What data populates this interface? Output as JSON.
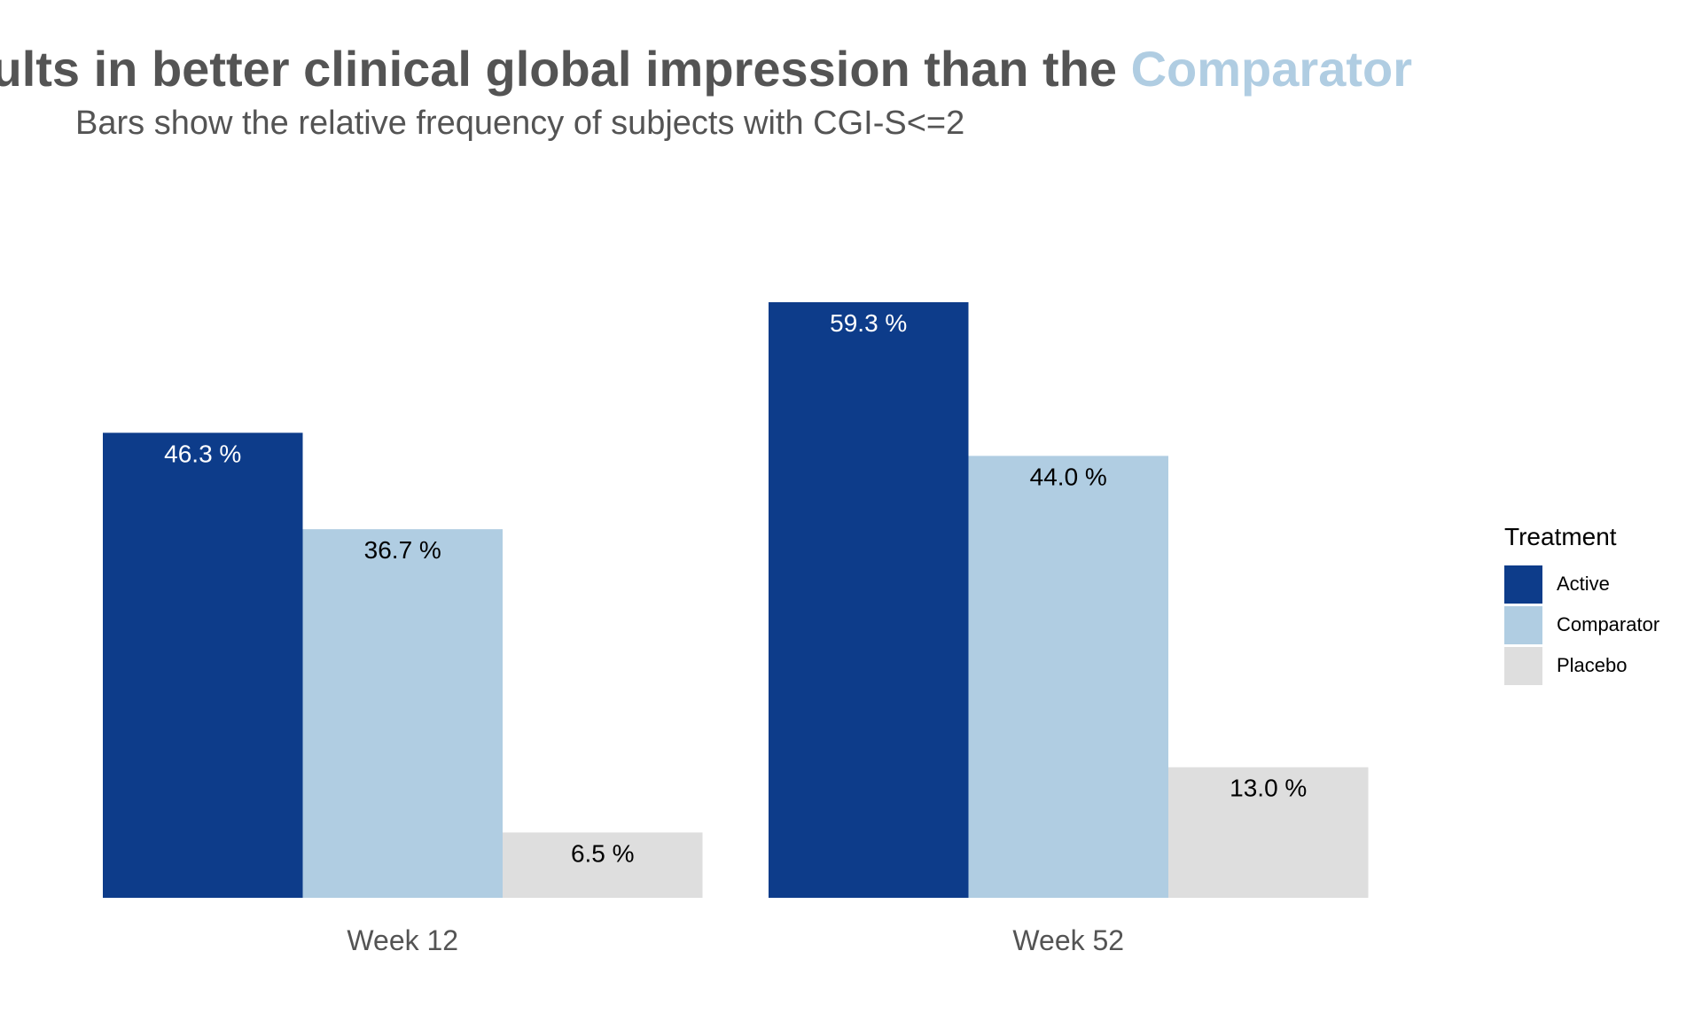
{
  "title": {
    "before": "esults in better clinical global impression than the ",
    "highlight": "Comparator"
  },
  "subtitle": "Bars show the relative frequency of subjects with CGI-S<=2",
  "colors": {
    "Active": "#0d3c8a",
    "Comparator": "#b0cde2",
    "Placebo": "#dedede",
    "label_on_dark": "#ffffff",
    "label_on_light": "#000000"
  },
  "legend": {
    "title": "Treatment",
    "items": [
      "Active",
      "Comparator",
      "Placebo"
    ]
  },
  "chart_data": {
    "type": "bar",
    "categories": [
      "Week 12",
      "Week 52"
    ],
    "series": [
      {
        "name": "Active",
        "values": [
          46.3,
          59.3
        ],
        "labels": [
          "46.3 %",
          "59.3 %"
        ]
      },
      {
        "name": "Comparator",
        "values": [
          36.7,
          44.0
        ],
        "labels": [
          "36.7 %",
          "44.0 %"
        ]
      },
      {
        "name": "Placebo",
        "values": [
          6.5,
          13.0
        ],
        "labels": [
          "6.5 %",
          "13.0 %"
        ]
      }
    ],
    "ylim": [
      0,
      59.3
    ],
    "grid": false,
    "legend_position": "right"
  }
}
